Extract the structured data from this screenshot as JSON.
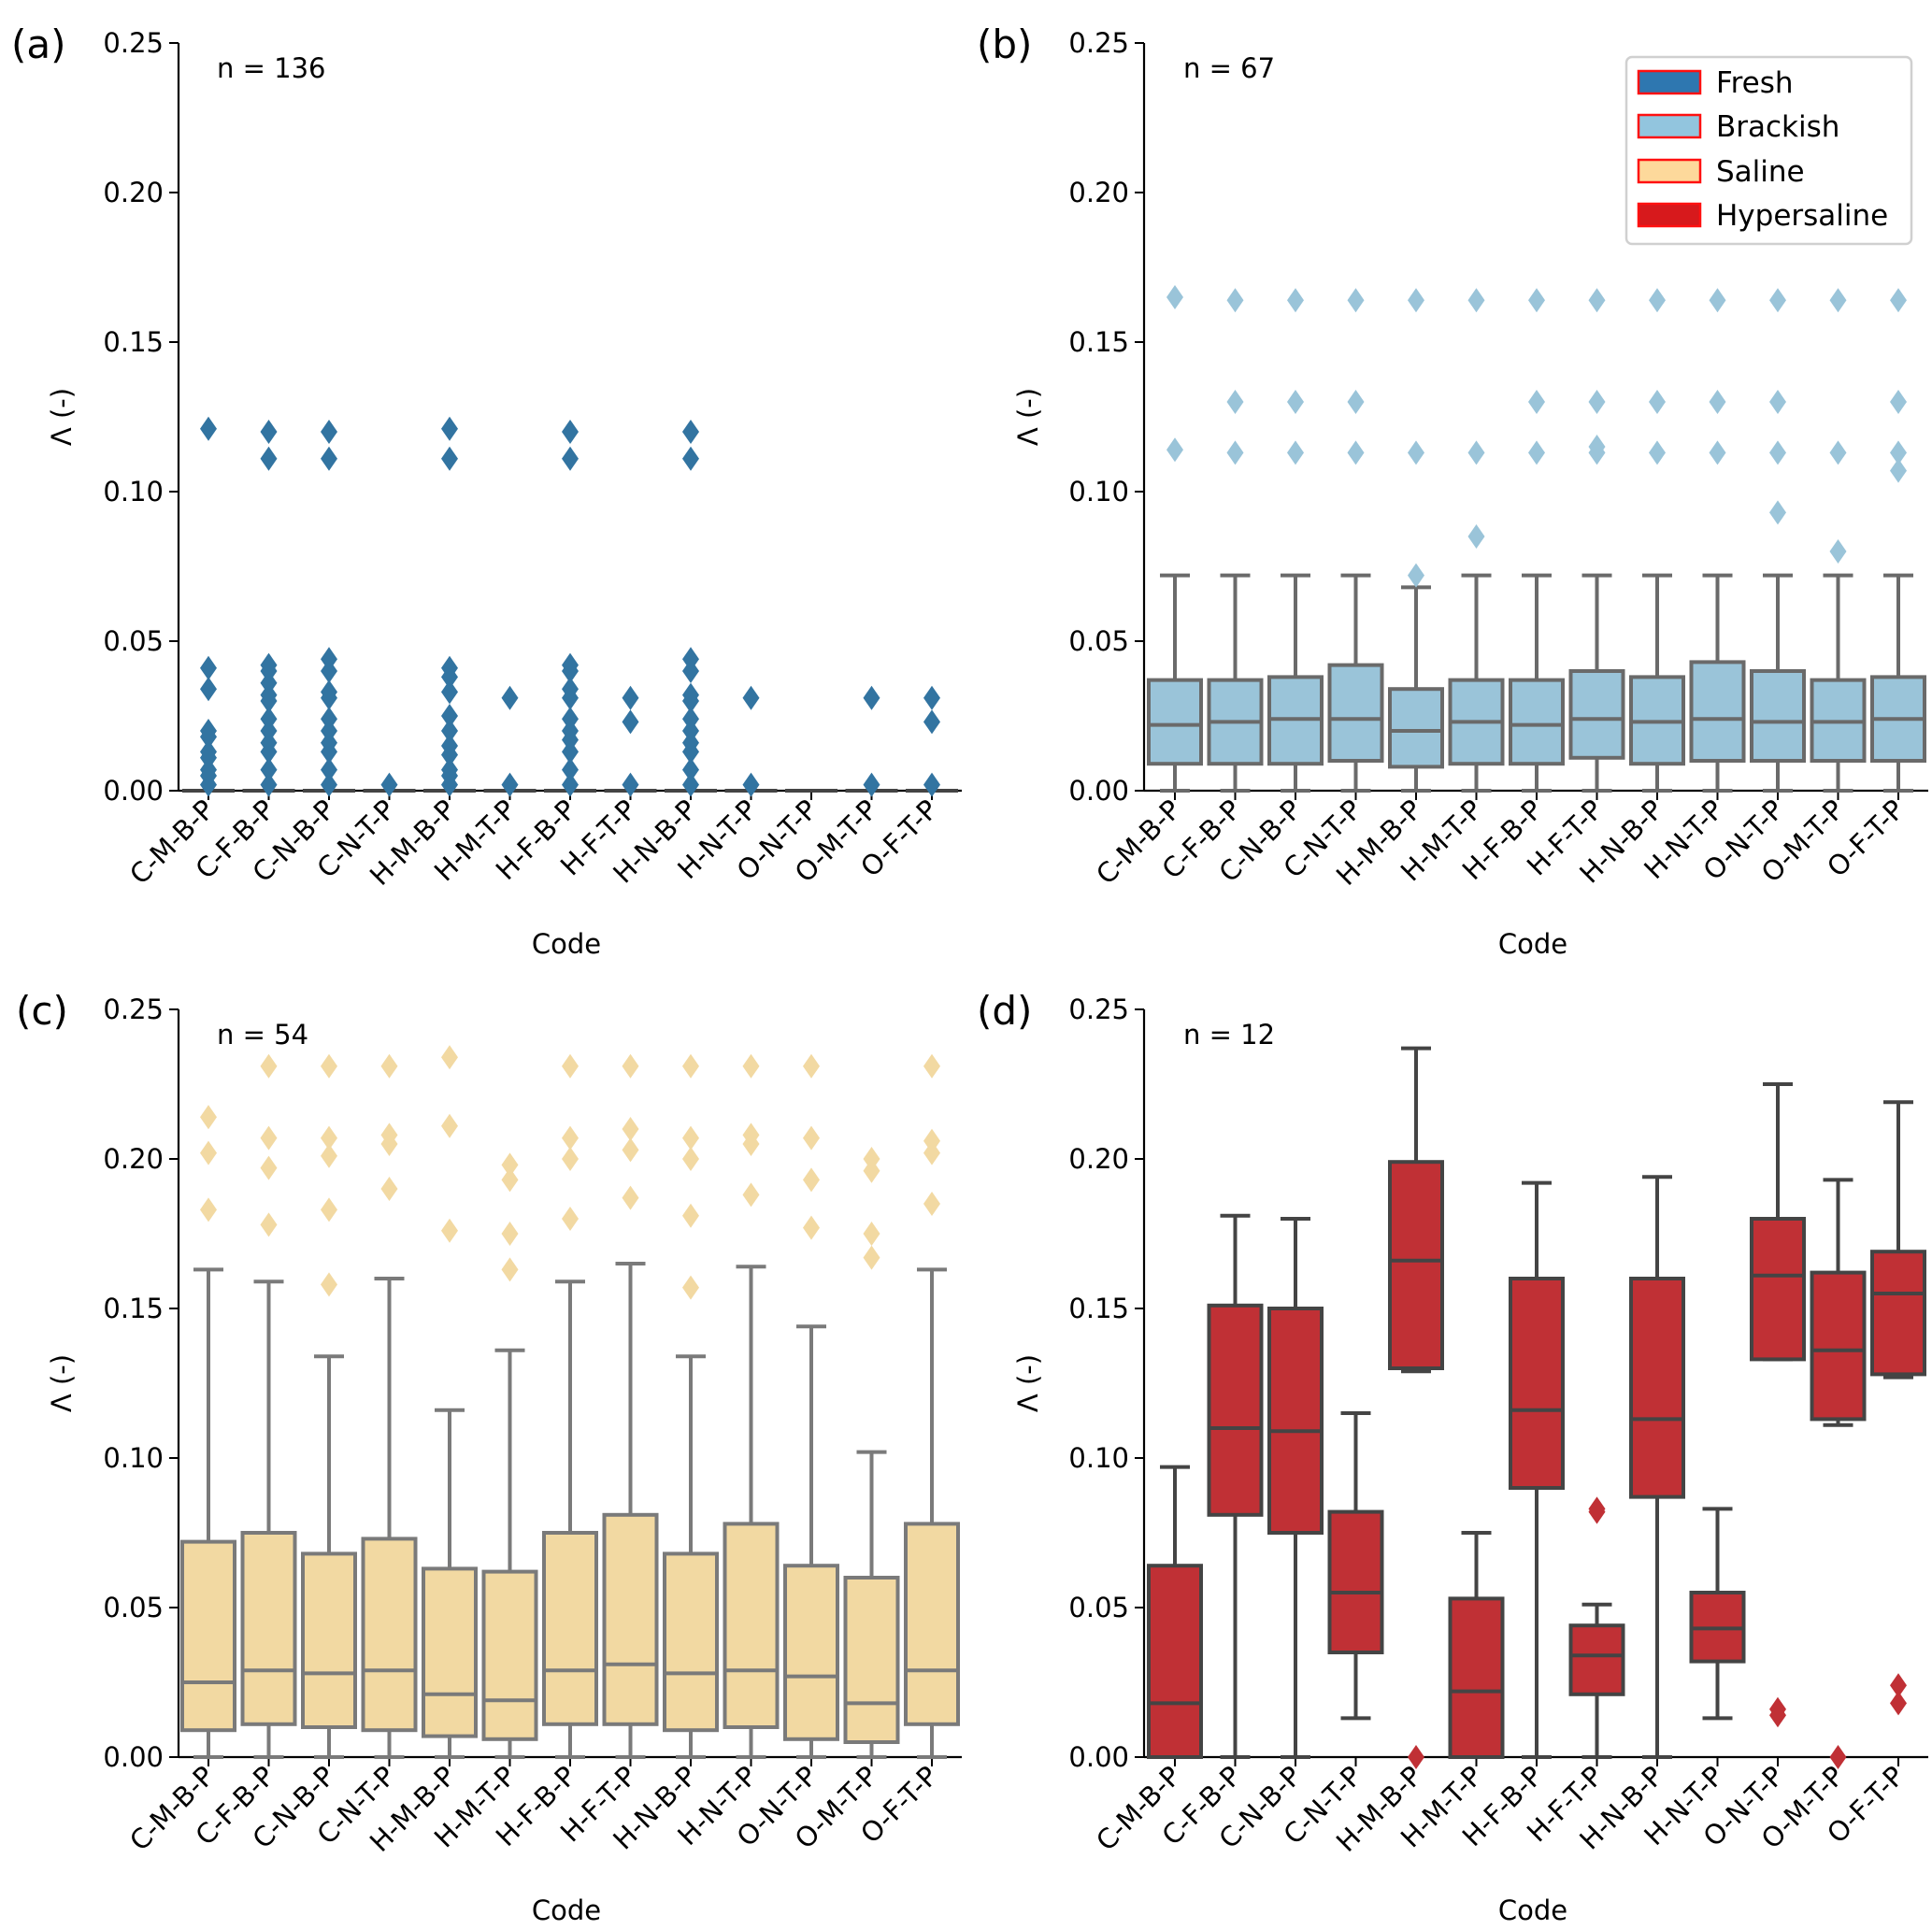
{
  "chart_data": [
    {
      "type": "box",
      "panel_label": "(a)",
      "annotation": "n = 136",
      "xlabel": "Code",
      "ylabel": "Λ (-)",
      "ylim": [
        0,
        0.25
      ],
      "yticks": [
        "0.00",
        "0.05",
        "0.10",
        "0.15",
        "0.20",
        "0.25"
      ],
      "categories": [
        "C-M-B-P",
        "C-F-B-P",
        "C-N-B-P",
        "C-N-T-P",
        "H-M-B-P",
        "H-M-T-P",
        "H-F-B-P",
        "H-F-T-P",
        "H-N-B-P",
        "H-N-T-P",
        "O-N-T-P",
        "O-M-T-P",
        "O-F-T-P"
      ],
      "color": "#3274a1",
      "edge": "#444444",
      "boxes": [
        {
          "q1": 0,
          "median": 0,
          "q3": 0,
          "whislo": 0,
          "whishi": 0,
          "fliers": [
            0.121,
            0.041,
            0.034,
            0.02,
            0.018,
            0.013,
            0.011,
            0.007,
            0.005,
            0.002
          ]
        },
        {
          "q1": 0,
          "median": 0,
          "q3": 0,
          "whislo": 0,
          "whishi": 0,
          "fliers": [
            0.12,
            0.111,
            0.042,
            0.04,
            0.036,
            0.032,
            0.03,
            0.024,
            0.02,
            0.016,
            0.013,
            0.007,
            0.002
          ]
        },
        {
          "q1": 0,
          "median": 0,
          "q3": 0,
          "whislo": 0,
          "whishi": 0,
          "fliers": [
            0.12,
            0.111,
            0.044,
            0.04,
            0.033,
            0.031,
            0.024,
            0.02,
            0.016,
            0.013,
            0.007,
            0.002
          ]
        },
        {
          "q1": 0,
          "median": 0,
          "q3": 0,
          "whislo": 0,
          "whishi": 0,
          "fliers": [
            0.002
          ]
        },
        {
          "q1": 0,
          "median": 0,
          "q3": 0,
          "whislo": 0,
          "whishi": 0,
          "fliers": [
            0.121,
            0.111,
            0.041,
            0.038,
            0.033,
            0.025,
            0.02,
            0.015,
            0.012,
            0.007,
            0.005,
            0.002
          ]
        },
        {
          "q1": 0,
          "median": 0,
          "q3": 0,
          "whislo": 0,
          "whishi": 0,
          "fliers": [
            0.031,
            0.002
          ]
        },
        {
          "q1": 0,
          "median": 0,
          "q3": 0,
          "whislo": 0,
          "whishi": 0,
          "fliers": [
            0.12,
            0.111,
            0.042,
            0.04,
            0.034,
            0.031,
            0.024,
            0.02,
            0.017,
            0.013,
            0.007,
            0.002
          ]
        },
        {
          "q1": 0,
          "median": 0,
          "q3": 0,
          "whislo": 0,
          "whishi": 0,
          "fliers": [
            0.031,
            0.023,
            0.002
          ]
        },
        {
          "q1": 0,
          "median": 0,
          "q3": 0,
          "whislo": 0,
          "whishi": 0,
          "fliers": [
            0.12,
            0.111,
            0.044,
            0.04,
            0.032,
            0.03,
            0.024,
            0.02,
            0.016,
            0.013,
            0.007,
            0.002
          ]
        },
        {
          "q1": 0,
          "median": 0,
          "q3": 0,
          "whislo": 0,
          "whishi": 0,
          "fliers": [
            0.031,
            0.002
          ]
        },
        {
          "q1": 0,
          "median": 0,
          "q3": 0,
          "whislo": 0,
          "whishi": 0,
          "fliers": []
        },
        {
          "q1": 0,
          "median": 0,
          "q3": 0,
          "whislo": 0,
          "whishi": 0,
          "fliers": [
            0.031,
            0.002
          ]
        },
        {
          "q1": 0,
          "median": 0,
          "q3": 0,
          "whislo": 0,
          "whishi": 0,
          "fliers": [
            0.031,
            0.023,
            0.002
          ]
        }
      ]
    },
    {
      "type": "box",
      "panel_label": "(b)",
      "annotation": "n = 67",
      "xlabel": "Code",
      "ylabel": "Λ (-)",
      "ylim": [
        0,
        0.25
      ],
      "yticks": [
        "0.00",
        "0.05",
        "0.10",
        "0.15",
        "0.20",
        "0.25"
      ],
      "categories": [
        "C-M-B-P",
        "C-F-B-P",
        "C-N-B-P",
        "C-N-T-P",
        "H-M-B-P",
        "H-M-T-P",
        "H-F-B-P",
        "H-F-T-P",
        "H-N-B-P",
        "H-N-T-P",
        "O-N-T-P",
        "O-M-T-P",
        "O-F-T-P"
      ],
      "color": "#9ac4d9",
      "edge": "#6a6a6a",
      "legend": {
        "position": "top-right",
        "entries": [
          {
            "label": "Fresh",
            "color": "#3274a1"
          },
          {
            "label": "Brackish",
            "color": "#92c5de"
          },
          {
            "label": "Saline",
            "color": "#fdd99b"
          },
          {
            "label": "Hypersaline",
            "color": "#d7191c"
          }
        ]
      },
      "boxes": [
        {
          "q1": 0.009,
          "median": 0.022,
          "q3": 0.037,
          "whislo": 0,
          "whishi": 0.072,
          "fliers": [
            0.165,
            0.114
          ]
        },
        {
          "q1": 0.009,
          "median": 0.023,
          "q3": 0.037,
          "whislo": 0,
          "whishi": 0.072,
          "fliers": [
            0.164,
            0.13,
            0.113
          ]
        },
        {
          "q1": 0.009,
          "median": 0.024,
          "q3": 0.038,
          "whislo": 0,
          "whishi": 0.072,
          "fliers": [
            0.164,
            0.13,
            0.113
          ]
        },
        {
          "q1": 0.01,
          "median": 0.024,
          "q3": 0.042,
          "whislo": 0,
          "whishi": 0.072,
          "fliers": [
            0.164,
            0.13,
            0.113
          ]
        },
        {
          "q1": 0.008,
          "median": 0.02,
          "q3": 0.034,
          "whislo": 0,
          "whishi": 0.068,
          "fliers": [
            0.164,
            0.113,
            0.072
          ]
        },
        {
          "q1": 0.009,
          "median": 0.023,
          "q3": 0.037,
          "whislo": 0,
          "whishi": 0.072,
          "fliers": [
            0.164,
            0.113,
            0.085
          ]
        },
        {
          "q1": 0.009,
          "median": 0.022,
          "q3": 0.037,
          "whislo": 0,
          "whishi": 0.072,
          "fliers": [
            0.164,
            0.13,
            0.113
          ]
        },
        {
          "q1": 0.011,
          "median": 0.024,
          "q3": 0.04,
          "whislo": 0,
          "whishi": 0.072,
          "fliers": [
            0.164,
            0.13,
            0.115,
            0.113
          ]
        },
        {
          "q1": 0.009,
          "median": 0.023,
          "q3": 0.038,
          "whislo": 0,
          "whishi": 0.072,
          "fliers": [
            0.164,
            0.13,
            0.113
          ]
        },
        {
          "q1": 0.01,
          "median": 0.024,
          "q3": 0.043,
          "whislo": 0,
          "whishi": 0.072,
          "fliers": [
            0.164,
            0.13,
            0.113
          ]
        },
        {
          "q1": 0.01,
          "median": 0.023,
          "q3": 0.04,
          "whislo": 0,
          "whishi": 0.072,
          "fliers": [
            0.164,
            0.13,
            0.113,
            0.093
          ]
        },
        {
          "q1": 0.01,
          "median": 0.023,
          "q3": 0.037,
          "whislo": 0,
          "whishi": 0.072,
          "fliers": [
            0.164,
            0.113,
            0.08
          ]
        },
        {
          "q1": 0.01,
          "median": 0.024,
          "q3": 0.038,
          "whislo": 0,
          "whishi": 0.072,
          "fliers": [
            0.164,
            0.13,
            0.113,
            0.107
          ]
        }
      ]
    },
    {
      "type": "box",
      "panel_label": "(c)",
      "annotation": "n = 54",
      "xlabel": "Code",
      "ylabel": "Λ (-)",
      "ylim": [
        0,
        0.25
      ],
      "yticks": [
        "0.00",
        "0.05",
        "0.10",
        "0.15",
        "0.20",
        "0.25"
      ],
      "categories": [
        "C-M-B-P",
        "C-F-B-P",
        "C-N-B-P",
        "C-N-T-P",
        "H-M-B-P",
        "H-M-T-P",
        "H-F-B-P",
        "H-F-T-P",
        "H-N-B-P",
        "H-N-T-P",
        "O-N-T-P",
        "O-M-T-P",
        "O-F-T-P"
      ],
      "color": "#f2d9a2",
      "edge": "#7a7a7a",
      "boxes": [
        {
          "q1": 0.009,
          "median": 0.025,
          "q3": 0.072,
          "whislo": 0,
          "whishi": 0.163,
          "fliers": [
            0.214,
            0.202,
            0.183
          ]
        },
        {
          "q1": 0.011,
          "median": 0.029,
          "q3": 0.075,
          "whislo": 0,
          "whishi": 0.159,
          "fliers": [
            0.231,
            0.207,
            0.197,
            0.178
          ]
        },
        {
          "q1": 0.01,
          "median": 0.028,
          "q3": 0.068,
          "whislo": 0,
          "whishi": 0.134,
          "fliers": [
            0.231,
            0.207,
            0.201,
            0.183,
            0.158
          ]
        },
        {
          "q1": 0.009,
          "median": 0.029,
          "q3": 0.073,
          "whislo": 0,
          "whishi": 0.16,
          "fliers": [
            0.231,
            0.208,
            0.205,
            0.19
          ]
        },
        {
          "q1": 0.007,
          "median": 0.021,
          "q3": 0.063,
          "whislo": 0,
          "whishi": 0.116,
          "fliers": [
            0.234,
            0.211,
            0.176
          ]
        },
        {
          "q1": 0.006,
          "median": 0.019,
          "q3": 0.062,
          "whislo": 0,
          "whishi": 0.136,
          "fliers": [
            0.198,
            0.193,
            0.175,
            0.163
          ]
        },
        {
          "q1": 0.011,
          "median": 0.029,
          "q3": 0.075,
          "whislo": 0,
          "whishi": 0.159,
          "fliers": [
            0.231,
            0.207,
            0.2,
            0.18
          ]
        },
        {
          "q1": 0.011,
          "median": 0.031,
          "q3": 0.081,
          "whislo": 0,
          "whishi": 0.165,
          "fliers": [
            0.231,
            0.21,
            0.203,
            0.187
          ]
        },
        {
          "q1": 0.009,
          "median": 0.028,
          "q3": 0.068,
          "whislo": 0,
          "whishi": 0.134,
          "fliers": [
            0.231,
            0.207,
            0.2,
            0.181,
            0.157
          ]
        },
        {
          "q1": 0.01,
          "median": 0.029,
          "q3": 0.078,
          "whislo": 0,
          "whishi": 0.164,
          "fliers": [
            0.231,
            0.208,
            0.205,
            0.188
          ]
        },
        {
          "q1": 0.006,
          "median": 0.027,
          "q3": 0.064,
          "whislo": 0,
          "whishi": 0.144,
          "fliers": [
            0.231,
            0.207,
            0.193,
            0.177
          ]
        },
        {
          "q1": 0.005,
          "median": 0.018,
          "q3": 0.06,
          "whislo": 0,
          "whishi": 0.102,
          "fliers": [
            0.2,
            0.196,
            0.175,
            0.167
          ]
        },
        {
          "q1": 0.011,
          "median": 0.029,
          "q3": 0.078,
          "whislo": 0,
          "whishi": 0.163,
          "fliers": [
            0.231,
            0.206,
            0.202,
            0.185
          ]
        }
      ]
    },
    {
      "type": "box",
      "panel_label": "(d)",
      "annotation": "n = 12",
      "xlabel": "Code",
      "ylabel": "Λ (-)",
      "ylim": [
        0,
        0.25
      ],
      "yticks": [
        "0.00",
        "0.05",
        "0.10",
        "0.15",
        "0.20",
        "0.25"
      ],
      "categories": [
        "C-M-B-P",
        "C-F-B-P",
        "C-N-B-P",
        "C-N-T-P",
        "H-M-B-P",
        "H-M-T-P",
        "H-F-B-P",
        "H-F-T-P",
        "H-N-B-P",
        "H-N-T-P",
        "O-N-T-P",
        "O-M-T-P",
        "O-F-T-P"
      ],
      "color": "#c03035",
      "edge": "#444444",
      "boxes": [
        {
          "q1": 0,
          "median": 0.018,
          "q3": 0.064,
          "whislo": 0,
          "whishi": 0.097,
          "fliers": []
        },
        {
          "q1": 0.081,
          "median": 0.11,
          "q3": 0.151,
          "whislo": 0,
          "whishi": 0.181,
          "fliers": []
        },
        {
          "q1": 0.075,
          "median": 0.109,
          "q3": 0.15,
          "whislo": 0,
          "whishi": 0.18,
          "fliers": []
        },
        {
          "q1": 0.035,
          "median": 0.055,
          "q3": 0.082,
          "whislo": 0.013,
          "whishi": 0.115,
          "fliers": []
        },
        {
          "q1": 0.13,
          "median": 0.166,
          "q3": 0.199,
          "whislo": 0.129,
          "whishi": 0.237,
          "fliers": [
            0
          ]
        },
        {
          "q1": 0,
          "median": 0.022,
          "q3": 0.053,
          "whislo": 0,
          "whishi": 0.075,
          "fliers": []
        },
        {
          "q1": 0.09,
          "median": 0.116,
          "q3": 0.16,
          "whislo": 0,
          "whishi": 0.192,
          "fliers": []
        },
        {
          "q1": 0.021,
          "median": 0.034,
          "q3": 0.044,
          "whislo": 0,
          "whishi": 0.051,
          "fliers": [
            0.083,
            0.082
          ]
        },
        {
          "q1": 0.087,
          "median": 0.113,
          "q3": 0.16,
          "whislo": 0,
          "whishi": 0.194,
          "fliers": []
        },
        {
          "q1": 0.032,
          "median": 0.043,
          "q3": 0.055,
          "whislo": 0.013,
          "whishi": 0.083,
          "fliers": []
        },
        {
          "q1": 0.133,
          "median": 0.161,
          "q3": 0.18,
          "whislo": 0.133,
          "whishi": 0.225,
          "fliers": [
            0.016,
            0.014
          ]
        },
        {
          "q1": 0.113,
          "median": 0.136,
          "q3": 0.162,
          "whislo": 0.111,
          "whishi": 0.193,
          "fliers": [
            0
          ]
        },
        {
          "q1": 0.128,
          "median": 0.155,
          "q3": 0.169,
          "whislo": 0.127,
          "whishi": 0.219,
          "fliers": [
            0.024,
            0.018
          ]
        }
      ]
    }
  ]
}
